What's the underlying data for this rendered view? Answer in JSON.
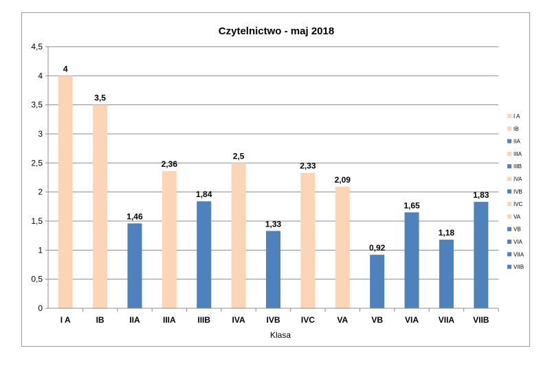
{
  "chart_data": {
    "type": "bar",
    "title": "Czytelnictwo - maj 2018",
    "xlabel": "Klasa",
    "ylabel": "",
    "ylim": [
      0,
      4.5
    ],
    "yticks": [
      0,
      0.5,
      1,
      1.5,
      2,
      2.5,
      3,
      3.5,
      4,
      4.5
    ],
    "ytick_labels": [
      "0",
      "0,5",
      "1",
      "1,5",
      "2",
      "2,5",
      "3",
      "3,5",
      "4",
      "4,5"
    ],
    "grid": true,
    "legend_position": "right",
    "categories": [
      "I A",
      "IB",
      "IIA",
      "IIIA",
      "IIIB",
      "IVA",
      "IVB",
      "IVC",
      "VA",
      "VB",
      "VIA",
      "VIIA",
      "VIIB"
    ],
    "values": [
      4,
      3.5,
      1.46,
      2.36,
      1.84,
      2.5,
      1.33,
      2.33,
      2.09,
      0.92,
      1.65,
      1.18,
      1.83
    ],
    "value_labels": [
      "4",
      "3,5",
      "1,46",
      "2,36",
      "1,84",
      "2,5",
      "1,33",
      "2,33",
      "2,09",
      "0,92",
      "1,65",
      "1,18",
      "1,83"
    ],
    "colors": [
      "#FBD5B5",
      "#FBD5B5",
      "#4F81BD",
      "#FBD5B5",
      "#4F81BD",
      "#FBD5B5",
      "#4F81BD",
      "#FBD5B5",
      "#FBD5B5",
      "#4F81BD",
      "#4F81BD",
      "#4F81BD",
      "#4F81BD"
    ]
  }
}
